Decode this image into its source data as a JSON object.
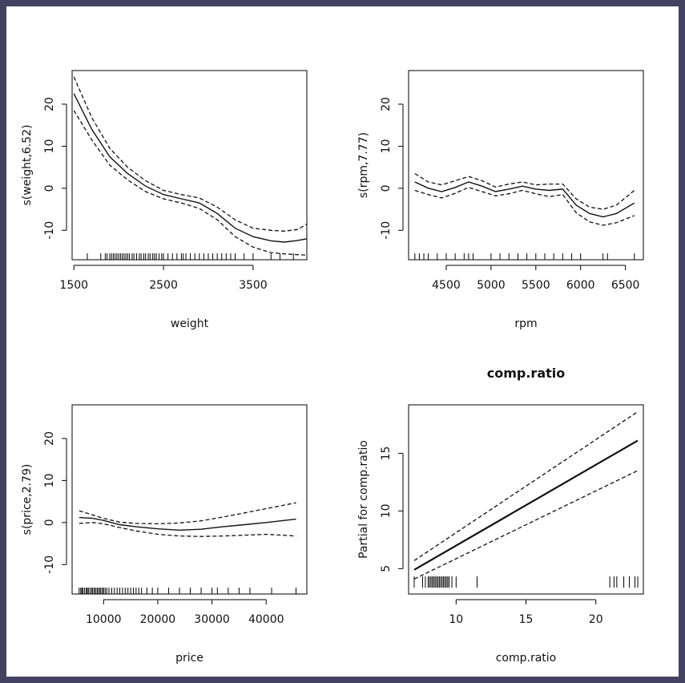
{
  "chart_data": [
    {
      "type": "line",
      "title": "",
      "xlabel": "weight",
      "ylabel": "s(weight,6.52)",
      "xlim": [
        1480,
        4100
      ],
      "ylim": [
        -17,
        28
      ],
      "xticks": [
        1500,
        2500,
        3500
      ],
      "yticks": [
        -10,
        0,
        10,
        20
      ],
      "xtick_labels": [
        "1500",
        "2500",
        "3500"
      ],
      "ytick_labels": [
        "-10",
        "0",
        "10",
        "20"
      ],
      "series": [
        {
          "name": "fit",
          "style": "solid",
          "x": [
            1500,
            1700,
            1900,
            2100,
            2300,
            2500,
            2700,
            2900,
            3100,
            3300,
            3500,
            3700,
            3850,
            4000,
            4100
          ],
          "y": [
            22.5,
            14.0,
            7.5,
            3.5,
            0.5,
            -1.5,
            -2.5,
            -3.5,
            -6.0,
            -9.5,
            -11.5,
            -12.5,
            -12.8,
            -12.4,
            -12.0
          ]
        },
        {
          "name": "upper band",
          "style": "dashed",
          "x": [
            1500,
            1700,
            1900,
            2100,
            2300,
            2500,
            2700,
            2900,
            3100,
            3300,
            3500,
            3700,
            3850,
            4000,
            4100
          ],
          "y": [
            26.5,
            16.8,
            9.5,
            5.0,
            1.8,
            -0.5,
            -1.5,
            -2.3,
            -4.5,
            -7.5,
            -9.5,
            -10.0,
            -10.2,
            -9.8,
            -8.5
          ]
        },
        {
          "name": "lower band",
          "style": "dashed",
          "x": [
            1500,
            1700,
            1900,
            2100,
            2300,
            2500,
            2700,
            2900,
            3100,
            3300,
            3500,
            3700,
            3850,
            4000,
            4100
          ],
          "y": [
            18.5,
            11.5,
            5.5,
            2.0,
            -0.8,
            -2.5,
            -3.5,
            -4.8,
            -7.5,
            -11.5,
            -14.0,
            -15.3,
            -15.6,
            -15.8,
            -15.9
          ]
        }
      ],
      "rug": [
        1650,
        1800,
        1850,
        1870,
        1900,
        1920,
        1940,
        1960,
        1980,
        2000,
        2020,
        2040,
        2060,
        2080,
        2100,
        2120,
        2150,
        2170,
        2200,
        2230,
        2250,
        2280,
        2300,
        2330,
        2350,
        2380,
        2400,
        2420,
        2450,
        2480,
        2500,
        2550,
        2600,
        2650,
        2700,
        2720,
        2750,
        2800,
        2850,
        2900,
        2950,
        3000,
        3050,
        3100,
        3150,
        3200,
        3250,
        3300,
        3400,
        3500,
        3700,
        3800,
        3950
      ]
    },
    {
      "type": "line",
      "title": "",
      "xlabel": "rpm",
      "ylabel": "s(rpm,7.77)",
      "xlim": [
        4080,
        6700
      ],
      "ylim": [
        -17,
        28
      ],
      "xticks": [
        4500,
        5000,
        5500,
        6000,
        6500
      ],
      "yticks": [
        -10,
        0,
        10,
        20
      ],
      "xtick_labels": [
        "4500",
        "5000",
        "5500",
        "6000",
        "6500"
      ],
      "ytick_labels": [
        "-10",
        "0",
        "10",
        "20"
      ],
      "series": [
        {
          "name": "fit",
          "style": "solid",
          "x": [
            4150,
            4300,
            4450,
            4600,
            4750,
            4900,
            5050,
            5200,
            5350,
            5500,
            5650,
            5800,
            5950,
            6100,
            6250,
            6400,
            6600
          ],
          "y": [
            1.5,
            0.0,
            -0.8,
            0.2,
            1.5,
            0.5,
            -0.8,
            -0.2,
            0.5,
            -0.2,
            -0.5,
            -0.2,
            -4.0,
            -6.0,
            -6.8,
            -6.0,
            -3.5
          ]
        },
        {
          "name": "upper band",
          "style": "dashed",
          "x": [
            4150,
            4300,
            4450,
            4600,
            4750,
            4900,
            5050,
            5200,
            5350,
            5500,
            5650,
            5800,
            5950,
            6100,
            6250,
            6400,
            6600
          ],
          "y": [
            3.5,
            1.5,
            0.8,
            1.8,
            2.8,
            1.8,
            0.3,
            1.0,
            1.5,
            0.8,
            1.0,
            1.0,
            -2.5,
            -4.5,
            -5.0,
            -4.0,
            -0.5
          ]
        },
        {
          "name": "lower band",
          "style": "dashed",
          "x": [
            4150,
            4300,
            4450,
            4600,
            4750,
            4900,
            5050,
            5200,
            5350,
            5500,
            5650,
            5800,
            5950,
            6100,
            6250,
            6400,
            6600
          ],
          "y": [
            -0.5,
            -1.5,
            -2.3,
            -1.2,
            0.2,
            -0.8,
            -1.8,
            -1.3,
            -0.5,
            -1.3,
            -2.0,
            -1.5,
            -5.8,
            -8.0,
            -8.8,
            -8.2,
            -6.5
          ]
        }
      ],
      "rug": [
        4150,
        4200,
        4250,
        4300,
        4400,
        4500,
        4600,
        4700,
        4750,
        4800,
        5000,
        5100,
        5200,
        5300,
        5400,
        5500,
        5600,
        5700,
        5800,
        5900,
        6000,
        6250,
        6300,
        6600
      ]
    },
    {
      "type": "line",
      "title": "",
      "xlabel": "price",
      "ylabel": "s(price,2.79)",
      "xlim": [
        4200,
        47500
      ],
      "ylim": [
        -17,
        28
      ],
      "xticks": [
        10000,
        20000,
        30000,
        40000
      ],
      "yticks": [
        -10,
        0,
        10,
        20
      ],
      "xtick_labels": [
        "10000",
        "20000",
        "30000",
        "40000"
      ],
      "ytick_labels": [
        "-10",
        "0",
        "10",
        "20"
      ],
      "series": [
        {
          "name": "fit",
          "style": "solid",
          "x": [
            5500,
            8000,
            10000,
            13000,
            16000,
            20000,
            24000,
            28000,
            32000,
            36000,
            40000,
            45500
          ],
          "y": [
            1.2,
            1.0,
            0.5,
            -0.5,
            -1.0,
            -1.5,
            -1.8,
            -1.6,
            -1.0,
            -0.5,
            0.0,
            0.8
          ]
        },
        {
          "name": "upper band",
          "style": "dashed",
          "x": [
            5500,
            8000,
            10000,
            13000,
            16000,
            20000,
            24000,
            28000,
            32000,
            36000,
            40000,
            45500
          ],
          "y": [
            2.8,
            1.8,
            1.0,
            0.1,
            -0.2,
            -0.3,
            -0.1,
            0.4,
            1.3,
            2.3,
            3.3,
            4.7
          ]
        },
        {
          "name": "lower band",
          "style": "dashed",
          "x": [
            5500,
            8000,
            10000,
            13000,
            16000,
            20000,
            24000,
            28000,
            32000,
            36000,
            40000,
            45500
          ],
          "y": [
            -0.2,
            0.0,
            -0.3,
            -1.2,
            -2.0,
            -2.8,
            -3.2,
            -3.3,
            -3.2,
            -3.0,
            -2.8,
            -3.2
          ]
        }
      ],
      "rug": [
        5500,
        5800,
        6000,
        6200,
        6500,
        6800,
        7000,
        7200,
        7500,
        7800,
        8000,
        8300,
        8500,
        8800,
        9000,
        9300,
        9500,
        9800,
        10000,
        10300,
        10600,
        11000,
        11500,
        12000,
        12500,
        13000,
        13500,
        14000,
        14500,
        15000,
        15500,
        16000,
        16500,
        17000,
        18000,
        19000,
        20000,
        22000,
        24000,
        26000,
        28000,
        30000,
        31000,
        33000,
        35000,
        37000,
        41000,
        45500
      ]
    },
    {
      "type": "line",
      "title": "comp.ratio",
      "xlabel": "comp.ratio",
      "ylabel": "Partial for comp.ratio",
      "xlim": [
        6.6,
        23.4
      ],
      "ylim": [
        2.8,
        19.2
      ],
      "xticks": [
        10,
        15,
        20
      ],
      "yticks": [
        5,
        10,
        15
      ],
      "xtick_labels": [
        "10",
        "15",
        "20"
      ],
      "ytick_labels": [
        "5",
        "10",
        "15"
      ],
      "series": [
        {
          "name": "fit",
          "style": "solid",
          "x": [
            7,
            23
          ],
          "y": [
            4.9,
            16.1
          ]
        },
        {
          "name": "upper band",
          "style": "dashed",
          "x": [
            7,
            23
          ],
          "y": [
            5.7,
            18.6
          ]
        },
        {
          "name": "lower band",
          "style": "dashed",
          "x": [
            7,
            23
          ],
          "y": [
            4.1,
            13.5
          ]
        }
      ],
      "rug": [
        7.0,
        7.6,
        7.8,
        8.0,
        8.1,
        8.2,
        8.3,
        8.4,
        8.5,
        8.6,
        8.7,
        8.8,
        8.9,
        9.0,
        9.1,
        9.2,
        9.3,
        9.4,
        9.5,
        9.7,
        10.0,
        11.5,
        21.0,
        21.3,
        21.5,
        22.0,
        22.4,
        22.8,
        23.0
      ]
    }
  ]
}
